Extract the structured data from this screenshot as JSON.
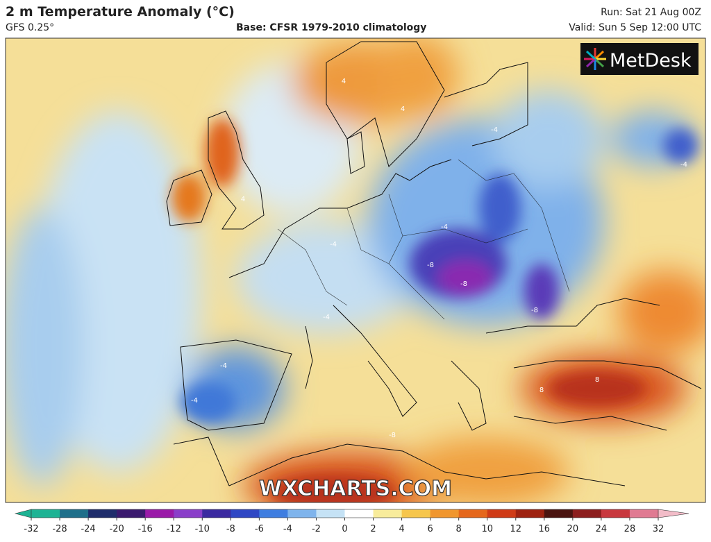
{
  "header": {
    "title": "2 m Temperature Anomaly (°C)",
    "model": "GFS 0.25°",
    "base": "Base: CFSR 1979-2010 climatology",
    "run": "Run: Sat 21 Aug 00Z",
    "valid": "Valid: Sun 5 Sep 12:00 UTC"
  },
  "logo": "MetDesk",
  "watermark": "WXCHARTS.COM",
  "contour_labels": [
    -4,
    4,
    4,
    -4,
    -4,
    -4,
    -8,
    -8,
    -4,
    8,
    8,
    -8,
    -4,
    -4,
    4,
    -8
  ],
  "colorbar": {
    "ticks": [
      -32,
      -28,
      -24,
      -20,
      -16,
      -12,
      -10,
      -8,
      -6,
      -4,
      -2,
      0,
      2,
      4,
      6,
      8,
      10,
      12,
      16,
      20,
      24,
      28,
      32
    ],
    "colors": [
      "#1db394",
      "#1f6f8a",
      "#1f2d6b",
      "#3b1a6e",
      "#9a1aa8",
      "#8a3fc9",
      "#3b2aa0",
      "#2f47c4",
      "#3f7ee0",
      "#7fb4ec",
      "#c5e2f5",
      "#ffffff",
      "#f8ec9c",
      "#f6c64c",
      "#f0962e",
      "#e5671c",
      "#cf3b17",
      "#9e2211",
      "#4a1410",
      "#8c1e1e",
      "#c8383e",
      "#e07a92",
      "#f2bcc8"
    ]
  }
}
